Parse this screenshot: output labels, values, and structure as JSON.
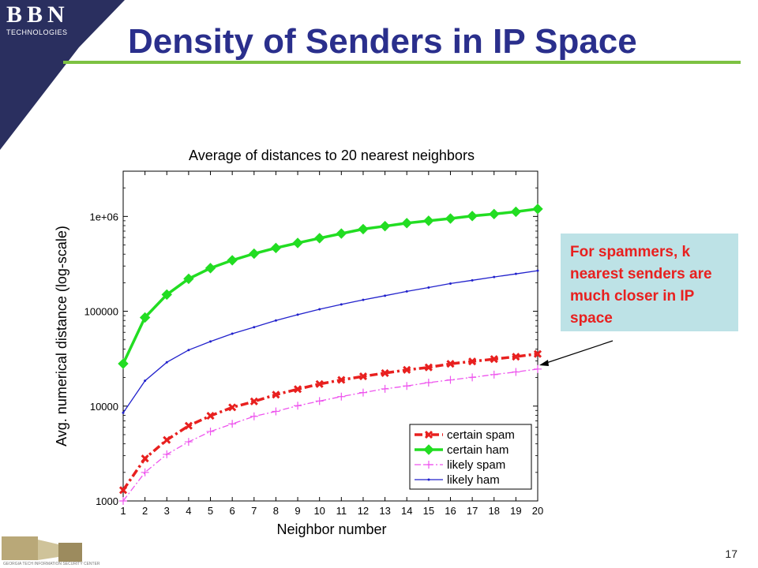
{
  "slide": {
    "title": "Density of Senders in IP Space",
    "logo_big": "BBN",
    "logo_small": "TECHNOLOGIES",
    "page_number": "17",
    "footer_text": "GEORGIA TECH INFORMATION SECURITY CENTER",
    "callout": "For spammers, k nearest senders are much closer in IP space"
  },
  "colors": {
    "title": "#2a2f8c",
    "rule": "#7dc242",
    "corner": "#2a2f5f",
    "callout_bg": "#bde2e6",
    "callout_text": "#e8201f"
  },
  "chart_data": {
    "type": "line",
    "title": "Average of distances to 20 nearest neighbors",
    "xlabel": "Neighbor number",
    "ylabel": "Avg. numerical distance (log-scale)",
    "yscale": "log",
    "xlim": [
      1,
      20
    ],
    "ylim": [
      1000,
      3000000
    ],
    "xticks": [
      "1",
      "2",
      "3",
      "4",
      "5",
      "6",
      "7",
      "8",
      "9",
      "10",
      "11",
      "12",
      "13",
      "14",
      "15",
      "16",
      "17",
      "18",
      "19",
      "20"
    ],
    "yticks": [
      {
        "value": 1000,
        "label": "1000"
      },
      {
        "value": 10000,
        "label": "10000"
      },
      {
        "value": 100000,
        "label": "100000"
      },
      {
        "value": 1000000,
        "label": "1e+06"
      }
    ],
    "legend_position": "bottom-right",
    "x": [
      1,
      2,
      3,
      4,
      5,
      6,
      7,
      8,
      9,
      10,
      11,
      12,
      13,
      14,
      15,
      16,
      17,
      18,
      19,
      20
    ],
    "series": [
      {
        "name": "certain spam",
        "color": "#e8201f",
        "dash": "10,4,3,4",
        "width": 3.5,
        "marker": "x",
        "values": [
          1300,
          2800,
          4400,
          6200,
          7900,
          9700,
          11200,
          13200,
          15100,
          17100,
          18900,
          20600,
          22300,
          24100,
          25600,
          27900,
          29600,
          31300,
          33200,
          35500
        ]
      },
      {
        "name": "certain ham",
        "color": "#22dd22",
        "dash": "",
        "width": 3.5,
        "marker": "diamond",
        "values": [
          28000,
          86000,
          150000,
          220000,
          285000,
          345000,
          405000,
          465000,
          525000,
          590000,
          660000,
          735000,
          790000,
          850000,
          900000,
          950000,
          1010000,
          1060000,
          1120000,
          1200000
        ]
      },
      {
        "name": "likely spam",
        "color": "#ee55ee",
        "dash": "8,3,2,3",
        "width": 1.3,
        "marker": "plus",
        "values": [
          1000,
          2000,
          3100,
          4200,
          5400,
          6500,
          7800,
          8800,
          10100,
          11300,
          12600,
          13900,
          15200,
          16300,
          17700,
          18900,
          20100,
          21500,
          22900,
          24600
        ]
      },
      {
        "name": "likely ham",
        "color": "#2222cc",
        "dash": "",
        "width": 1.3,
        "marker": "dot",
        "values": [
          8500,
          18500,
          29000,
          39000,
          48000,
          58000,
          68000,
          80000,
          92000,
          105000,
          118000,
          132000,
          146000,
          162000,
          178000,
          196000,
          212000,
          230000,
          248000,
          268000
        ]
      }
    ]
  }
}
